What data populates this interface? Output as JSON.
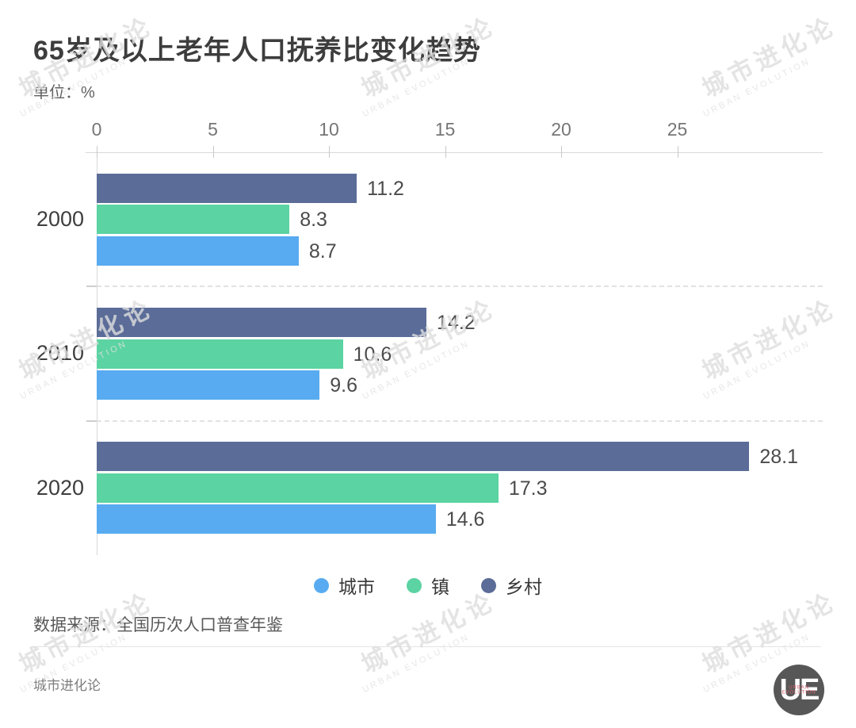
{
  "title": "65岁及以上老年人口抚养比变化趋势",
  "unit_label": "单位：%",
  "chart_data": {
    "type": "bar",
    "orientation": "horizontal",
    "title": "65岁及以上老年人口抚养比变化趋势",
    "unit": "%",
    "categories": [
      "2000",
      "2010",
      "2020"
    ],
    "series": [
      {
        "name": "城市",
        "key": "city",
        "color": "#58abf0",
        "values": [
          8.7,
          9.6,
          14.6
        ]
      },
      {
        "name": "镇",
        "key": "town",
        "color": "#5bd3a2",
        "values": [
          8.3,
          10.6,
          17.3
        ]
      },
      {
        "name": "乡村",
        "key": "rural",
        "color": "#5b6c98",
        "values": [
          11.2,
          14.2,
          28.1
        ]
      }
    ],
    "bar_display_order_top_to_bottom": [
      "乡村",
      "镇",
      "城市"
    ],
    "x_ticks": [
      0,
      5,
      10,
      15,
      20,
      25
    ],
    "xlim": [
      0,
      29.5
    ],
    "grid": "dashed-separators-between-categories",
    "legend_position": "bottom",
    "value_labels": true
  },
  "source": "数据来源：全国历次人口普查年鉴",
  "watermark": {
    "cn": "城市进化论",
    "en": "URBAN EVOLUTION"
  },
  "footer": {
    "brand": "城市进化论",
    "logo_text": "UE",
    "logo_subtext": "URBAN EVOLUTION"
  },
  "colors": {
    "city": "#58abf0",
    "town": "#5bd3a2",
    "rural": "#5b6c98",
    "axis": "#d8d8d8",
    "text_dark": "#3d3d3d"
  }
}
